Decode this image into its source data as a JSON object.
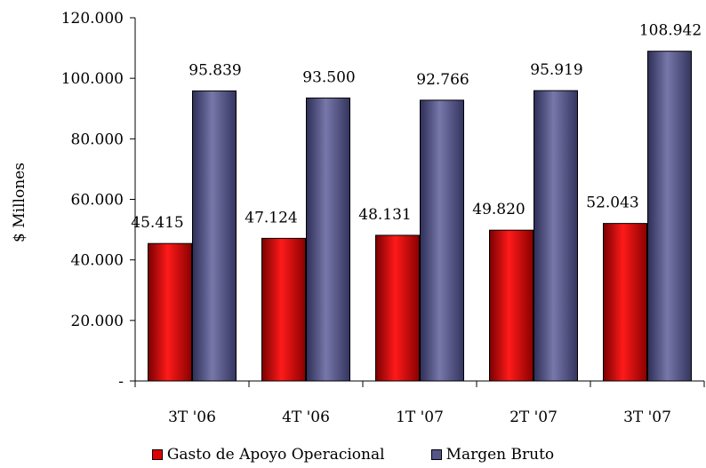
{
  "chart_data": {
    "type": "bar",
    "title": "",
    "xlabel": "",
    "ylabel": "$ Millones",
    "categories": [
      "3T '06",
      "4T '06",
      "1T '07",
      "2T '07",
      "3T '07"
    ],
    "series": [
      {
        "name": "Gasto de Apoyo Operacional",
        "values": [
          45415,
          47124,
          48131,
          49820,
          52043
        ],
        "labels": [
          "45.415",
          "47.124",
          "48.131",
          "49.820",
          "52.043"
        ],
        "color": "#e00000"
      },
      {
        "name": "Margen Bruto",
        "values": [
          95839,
          93500,
          92766,
          95919,
          108942
        ],
        "labels": [
          "95.839",
          "93.500",
          "92.766",
          "95.919",
          "108.942"
        ],
        "color": "#55558a"
      }
    ],
    "ylim": [
      0,
      120000
    ],
    "yticks": [
      0,
      20000,
      40000,
      60000,
      80000,
      100000,
      120000
    ],
    "ytick_labels": [
      "-",
      "20.000",
      "40.000",
      "60.000",
      "80.000",
      "100.000",
      "120.000"
    ],
    "grid": false,
    "legend_position": "bottom"
  }
}
